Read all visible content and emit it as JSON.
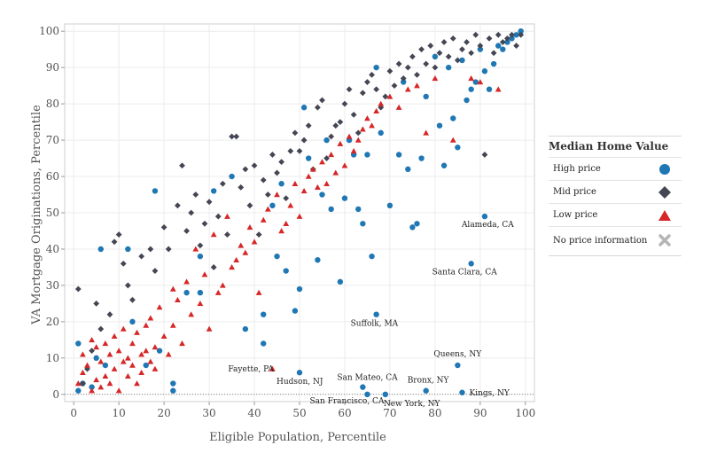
{
  "legend": {
    "title": "Median Home Value",
    "items": [
      {
        "label": "High price",
        "color": "#1f77b4",
        "icon": "circle"
      },
      {
        "label": "Mid price",
        "color": "#444654",
        "icon": "diamond"
      },
      {
        "label": "Low price",
        "color": "#d62728",
        "icon": "triangle-up"
      },
      {
        "label": "No price information",
        "color": "#b5b5b5",
        "icon": "cross"
      }
    ]
  },
  "chart_data": {
    "type": "scatter",
    "xlabel": "Eligible Population, Percentile",
    "ylabel": "VA Mortgage Originations, Percentile",
    "xlim": [
      -2,
      102
    ],
    "ylim": [
      -2,
      102
    ],
    "x_ticks": [
      0,
      10,
      20,
      30,
      40,
      50,
      60,
      70,
      80,
      90,
      100
    ],
    "y_ticks": [
      0,
      10,
      20,
      30,
      40,
      50,
      60,
      70,
      80,
      90,
      100
    ],
    "grid": true,
    "legend_position": "right",
    "annotations": [
      {
        "label": "Alameda, CA",
        "x": 91,
        "y": 49
      },
      {
        "label": "Santa Clara, CA",
        "x": 88,
        "y": 36
      },
      {
        "label": "Suffolk, MA",
        "x": 67,
        "y": 22
      },
      {
        "label": "Queens, NY",
        "x": 85,
        "y": 8
      },
      {
        "label": "San Mateo, CA",
        "x": 64,
        "y": 2
      },
      {
        "label": "Bronx, NY",
        "x": 78,
        "y": 1
      },
      {
        "label": "Kings, NY",
        "x": 86,
        "y": 0.5
      },
      {
        "label": "New York, NY",
        "x": 69,
        "y": 0
      },
      {
        "label": "San Francisco, CA",
        "x": 65,
        "y": 0
      },
      {
        "label": "Hudson, NJ",
        "x": 50,
        "y": 6
      },
      {
        "label": "Fayette, PA",
        "x": 44,
        "y": 7
      }
    ],
    "series": [
      {
        "name": "High price",
        "color": "#1f77b4",
        "marker": "circle",
        "points": [
          [
            1,
            1
          ],
          [
            1,
            14
          ],
          [
            2,
            3
          ],
          [
            4,
            2
          ],
          [
            5,
            10
          ],
          [
            6,
            40
          ],
          [
            7,
            8
          ],
          [
            12,
            40
          ],
          [
            13,
            20
          ],
          [
            16,
            8
          ],
          [
            18,
            56
          ],
          [
            19,
            12
          ],
          [
            22,
            3
          ],
          [
            22,
            1
          ],
          [
            25,
            28
          ],
          [
            28,
            28
          ],
          [
            28,
            38
          ],
          [
            31,
            56
          ],
          [
            35,
            60
          ],
          [
            38,
            18
          ],
          [
            42,
            22
          ],
          [
            42,
            14
          ],
          [
            44,
            52
          ],
          [
            45,
            38
          ],
          [
            46,
            58
          ],
          [
            47,
            34
          ],
          [
            49,
            23
          ],
          [
            50,
            29
          ],
          [
            51,
            79
          ],
          [
            52,
            65
          ],
          [
            54,
            37
          ],
          [
            55,
            55
          ],
          [
            56,
            70
          ],
          [
            57,
            51
          ],
          [
            59,
            31
          ],
          [
            60,
            54
          ],
          [
            61,
            70
          ],
          [
            62,
            66
          ],
          [
            63,
            51
          ],
          [
            64,
            47
          ],
          [
            65,
            66
          ],
          [
            66,
            38
          ],
          [
            67,
            90
          ],
          [
            68,
            72
          ],
          [
            70,
            52
          ],
          [
            72,
            66
          ],
          [
            73,
            86
          ],
          [
            74,
            62
          ],
          [
            75,
            46
          ],
          [
            76,
            47
          ],
          [
            77,
            65
          ],
          [
            78,
            82
          ],
          [
            80,
            93
          ],
          [
            81,
            74
          ],
          [
            82,
            63
          ],
          [
            83,
            90
          ],
          [
            84,
            76
          ],
          [
            85,
            68
          ],
          [
            86,
            92
          ],
          [
            87,
            81
          ],
          [
            88,
            84
          ],
          [
            89,
            86
          ],
          [
            90,
            95
          ],
          [
            91,
            89
          ],
          [
            92,
            84
          ],
          [
            93,
            91
          ],
          [
            94,
            96
          ],
          [
            95,
            95
          ],
          [
            96,
            97
          ],
          [
            97,
            98
          ],
          [
            98,
            99
          ],
          [
            99,
            100
          ],
          [
            91,
            49
          ],
          [
            88,
            36
          ],
          [
            67,
            22
          ],
          [
            85,
            8
          ],
          [
            64,
            2
          ],
          [
            78,
            1
          ],
          [
            86,
            0.5
          ],
          [
            69,
            0
          ],
          [
            65,
            0
          ],
          [
            50,
            6
          ]
        ]
      },
      {
        "name": "Mid price",
        "color": "#444654",
        "marker": "diamond",
        "points": [
          [
            1,
            29
          ],
          [
            2,
            3
          ],
          [
            3,
            7
          ],
          [
            4,
            12
          ],
          [
            5,
            25
          ],
          [
            6,
            18
          ],
          [
            8,
            22
          ],
          [
            9,
            42
          ],
          [
            10,
            44
          ],
          [
            11,
            36
          ],
          [
            12,
            30
          ],
          [
            13,
            26
          ],
          [
            15,
            38
          ],
          [
            17,
            40
          ],
          [
            18,
            34
          ],
          [
            20,
            46
          ],
          [
            21,
            40
          ],
          [
            23,
            52
          ],
          [
            24,
            63
          ],
          [
            25,
            45
          ],
          [
            26,
            50
          ],
          [
            27,
            55
          ],
          [
            28,
            41
          ],
          [
            29,
            47
          ],
          [
            30,
            53
          ],
          [
            31,
            35
          ],
          [
            32,
            49
          ],
          [
            33,
            58
          ],
          [
            34,
            44
          ],
          [
            35,
            71
          ],
          [
            36,
            71
          ],
          [
            37,
            57
          ],
          [
            38,
            62
          ],
          [
            39,
            52
          ],
          [
            40,
            63
          ],
          [
            41,
            44
          ],
          [
            42,
            59
          ],
          [
            43,
            55
          ],
          [
            44,
            66
          ],
          [
            45,
            61
          ],
          [
            46,
            64
          ],
          [
            47,
            54
          ],
          [
            48,
            67
          ],
          [
            49,
            72
          ],
          [
            50,
            67
          ],
          [
            51,
            70
          ],
          [
            52,
            74
          ],
          [
            53,
            62
          ],
          [
            54,
            79
          ],
          [
            55,
            81
          ],
          [
            56,
            65
          ],
          [
            57,
            71
          ],
          [
            58,
            74
          ],
          [
            59,
            75
          ],
          [
            60,
            80
          ],
          [
            61,
            84
          ],
          [
            62,
            77
          ],
          [
            63,
            72
          ],
          [
            64,
            83
          ],
          [
            65,
            86
          ],
          [
            66,
            88
          ],
          [
            67,
            84
          ],
          [
            68,
            79
          ],
          [
            69,
            82
          ],
          [
            70,
            89
          ],
          [
            71,
            85
          ],
          [
            72,
            91
          ],
          [
            73,
            87
          ],
          [
            74,
            90
          ],
          [
            75,
            93
          ],
          [
            76,
            88
          ],
          [
            77,
            95
          ],
          [
            78,
            91
          ],
          [
            79,
            96
          ],
          [
            80,
            90
          ],
          [
            81,
            94
          ],
          [
            82,
            97
          ],
          [
            83,
            93
          ],
          [
            84,
            98
          ],
          [
            85,
            92
          ],
          [
            86,
            95
          ],
          [
            87,
            97
          ],
          [
            88,
            94
          ],
          [
            89,
            99
          ],
          [
            90,
            96
          ],
          [
            91,
            66
          ],
          [
            92,
            98
          ],
          [
            93,
            94
          ],
          [
            94,
            99
          ],
          [
            95,
            97
          ],
          [
            96,
            98
          ],
          [
            97,
            99
          ],
          [
            98,
            96
          ],
          [
            99,
            99
          ]
        ]
      },
      {
        "name": "Low price",
        "color": "#d62728",
        "marker": "triangle-up",
        "points": [
          [
            1,
            3
          ],
          [
            2,
            11
          ],
          [
            2,
            6
          ],
          [
            3,
            8
          ],
          [
            4,
            15
          ],
          [
            4,
            1
          ],
          [
            5,
            13
          ],
          [
            5,
            4
          ],
          [
            6,
            9
          ],
          [
            6,
            2
          ],
          [
            7,
            14
          ],
          [
            7,
            5
          ],
          [
            8,
            11
          ],
          [
            8,
            3
          ],
          [
            9,
            7
          ],
          [
            9,
            16
          ],
          [
            10,
            12
          ],
          [
            10,
            1
          ],
          [
            11,
            9
          ],
          [
            11,
            18
          ],
          [
            12,
            5
          ],
          [
            12,
            10
          ],
          [
            13,
            14
          ],
          [
            13,
            8
          ],
          [
            14,
            17
          ],
          [
            14,
            3
          ],
          [
            15,
            11
          ],
          [
            15,
            6
          ],
          [
            16,
            19
          ],
          [
            16,
            12
          ],
          [
            17,
            9
          ],
          [
            17,
            21
          ],
          [
            18,
            13
          ],
          [
            18,
            7
          ],
          [
            19,
            24
          ],
          [
            20,
            16
          ],
          [
            21,
            11
          ],
          [
            22,
            29
          ],
          [
            22,
            19
          ],
          [
            23,
            26
          ],
          [
            24,
            14
          ],
          [
            25,
            31
          ],
          [
            26,
            22
          ],
          [
            27,
            40
          ],
          [
            28,
            25
          ],
          [
            29,
            33
          ],
          [
            30,
            18
          ],
          [
            31,
            44
          ],
          [
            32,
            28
          ],
          [
            33,
            30
          ],
          [
            34,
            49
          ],
          [
            35,
            35
          ],
          [
            36,
            37
          ],
          [
            37,
            41
          ],
          [
            38,
            39
          ],
          [
            39,
            46
          ],
          [
            40,
            42
          ],
          [
            41,
            28
          ],
          [
            42,
            48
          ],
          [
            43,
            51
          ],
          [
            44,
            7
          ],
          [
            45,
            55
          ],
          [
            46,
            45
          ],
          [
            47,
            47
          ],
          [
            48,
            52
          ],
          [
            49,
            58
          ],
          [
            50,
            49
          ],
          [
            51,
            56
          ],
          [
            52,
            60
          ],
          [
            53,
            62
          ],
          [
            54,
            57
          ],
          [
            55,
            64
          ],
          [
            56,
            58
          ],
          [
            57,
            66
          ],
          [
            58,
            61
          ],
          [
            59,
            69
          ],
          [
            60,
            63
          ],
          [
            61,
            71
          ],
          [
            62,
            67
          ],
          [
            63,
            70
          ],
          [
            64,
            73
          ],
          [
            65,
            76
          ],
          [
            66,
            74
          ],
          [
            67,
            78
          ],
          [
            68,
            80
          ],
          [
            70,
            82
          ],
          [
            72,
            79
          ],
          [
            74,
            84
          ],
          [
            76,
            85
          ],
          [
            78,
            72
          ],
          [
            80,
            87
          ],
          [
            84,
            70
          ],
          [
            88,
            87
          ],
          [
            90,
            86
          ],
          [
            94,
            84
          ]
        ]
      },
      {
        "name": "No price information",
        "color": "#b5b5b5",
        "marker": "cross",
        "points": []
      }
    ]
  }
}
